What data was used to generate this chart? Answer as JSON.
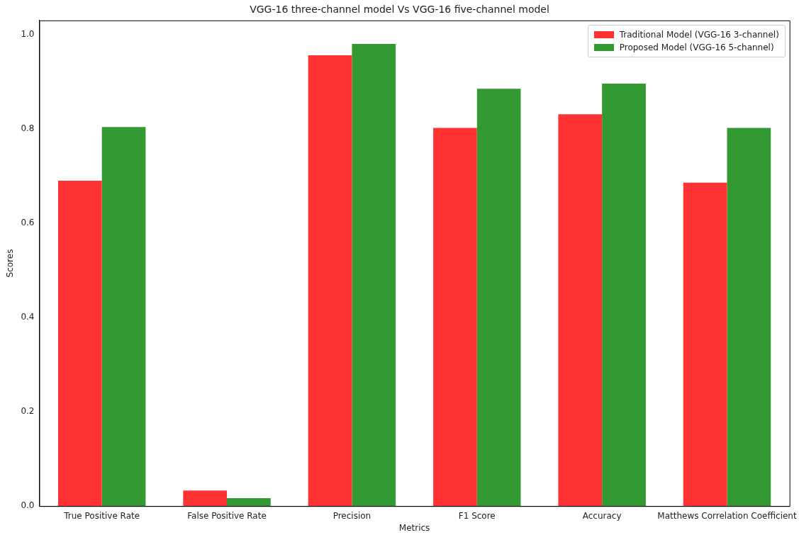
{
  "chart_data": {
    "type": "bar",
    "title": "VGG-16 three-channel model Vs VGG-16 five-channel model",
    "xlabel": "Metrics",
    "ylabel": "Scores",
    "categories": [
      "True Positive Rate",
      "False Positive Rate",
      "Precision",
      "F1 Score",
      "Accuracy",
      "Matthews Correlation Coefficient"
    ],
    "series": [
      {
        "name": "Traditional Model (VGG-16 3-channel)",
        "color": "#ff3333",
        "values": [
          0.69,
          0.033,
          0.956,
          0.802,
          0.831,
          0.686
        ]
      },
      {
        "name": "Proposed Model (VGG-16 5-channel)",
        "color": "#339933",
        "values": [
          0.804,
          0.017,
          0.98,
          0.885,
          0.896,
          0.802
        ]
      }
    ],
    "ylim": [
      0,
      1.03
    ],
    "yticks": [
      {
        "value": 0,
        "label": "0.0"
      },
      {
        "value": 0.2,
        "label": "0.2"
      },
      {
        "value": 0.4,
        "label": "0.4"
      },
      {
        "value": 0.6,
        "label": "0.6"
      },
      {
        "value": 0.8,
        "label": "0.8"
      },
      {
        "value": 1,
        "label": "1.0"
      }
    ],
    "grid": false,
    "legend": "top right"
  }
}
